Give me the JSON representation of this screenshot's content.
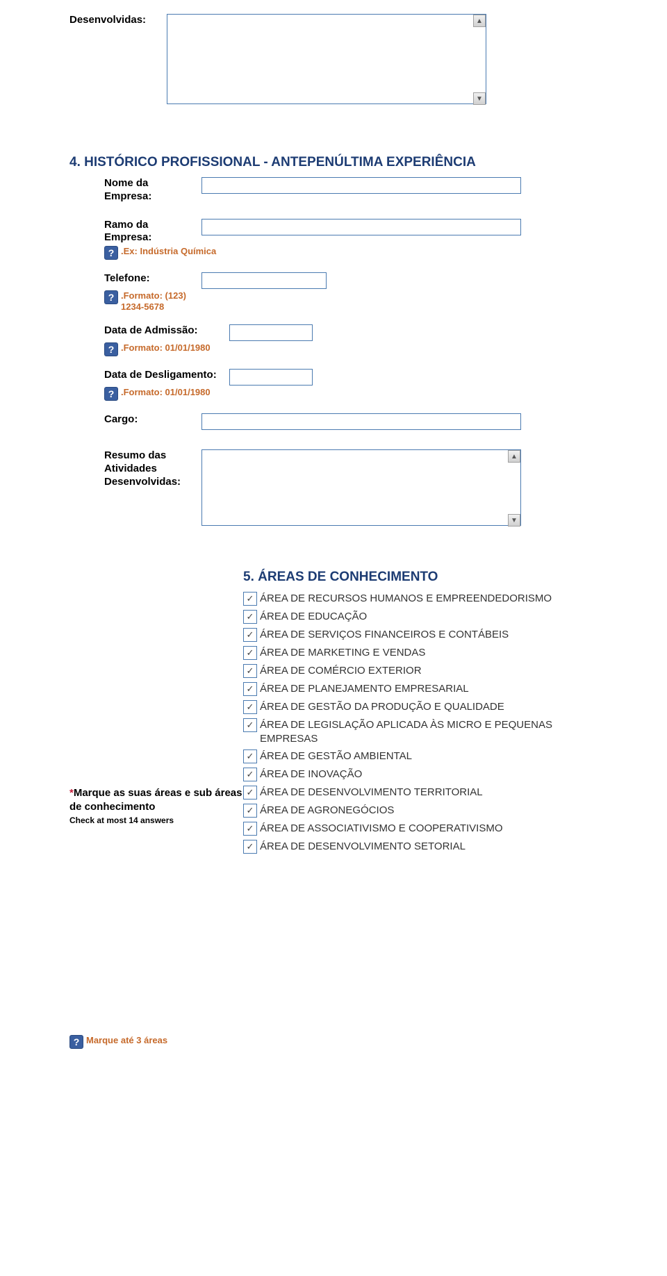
{
  "colors": {
    "heading": "#1d3c73",
    "hint": "#c66a2b",
    "border": "#4a7ab0",
    "hint_icon_bg": "#3a5fa0",
    "required": "#c41e3a",
    "text": "#000000",
    "check_label": "#333333"
  },
  "top": {
    "desenvolvidas_label": "Desenvolvidas:"
  },
  "section4": {
    "title": "4. HISTÓRICO PROFISSIONAL - ANTEPENÚLTIMA EXPERIÊNCIA",
    "nome_label": "Nome da Empresa:",
    "ramo_label": "Ramo da Empresa:",
    "ramo_hint": ".Ex: Indústria Química",
    "telefone_label": "Telefone:",
    "telefone_hint": ".Formato: (123) 1234-5678",
    "admissao_label": "Data de Admissão:",
    "admissao_hint": ".Formato: 01/01/1980",
    "desligamento_label": "Data de Desligamento:",
    "desligamento_hint": ".Formato: 01/01/1980",
    "cargo_label": "Cargo:",
    "resumo_label": "Resumo das Atividades Desenvolvidas:"
  },
  "section5": {
    "title": "5. ÁREAS DE CONHECIMENTO",
    "question": "Marque as suas áreas e sub áreas de conhecimento",
    "question_sub": "Check at most 14 answers",
    "bottom_hint": "Marque até 3 áreas",
    "items": [
      "ÁREA DE RECURSOS HUMANOS E EMPREENDEDORISMO",
      "ÁREA DE EDUCAÇÃO",
      "ÁREA DE SERVIÇOS FINANCEIROS E CONTÁBEIS",
      "ÁREA DE MARKETING E VENDAS",
      "ÁREA DE COMÉRCIO EXTERIOR",
      "ÁREA DE PLANEJAMENTO EMPRESARIAL",
      "ÁREA DE GESTÃO DA PRODUÇÃO E QUALIDADE",
      "ÁREA DE LEGISLAÇÃO APLICADA ÀS MICRO E PEQUENAS EMPRESAS",
      "ÁREA DE GESTÃO AMBIENTAL",
      "ÁREA DE INOVAÇÃO",
      "ÁREA DE DESENVOLVIMENTO TERRITORIAL",
      "ÁREA DE AGRONEGÓCIOS",
      "ÁREA DE ASSOCIATIVISMO E COOPERATIVISMO",
      "ÁREA DE DESENVOLVIMENTO SETORIAL"
    ]
  }
}
